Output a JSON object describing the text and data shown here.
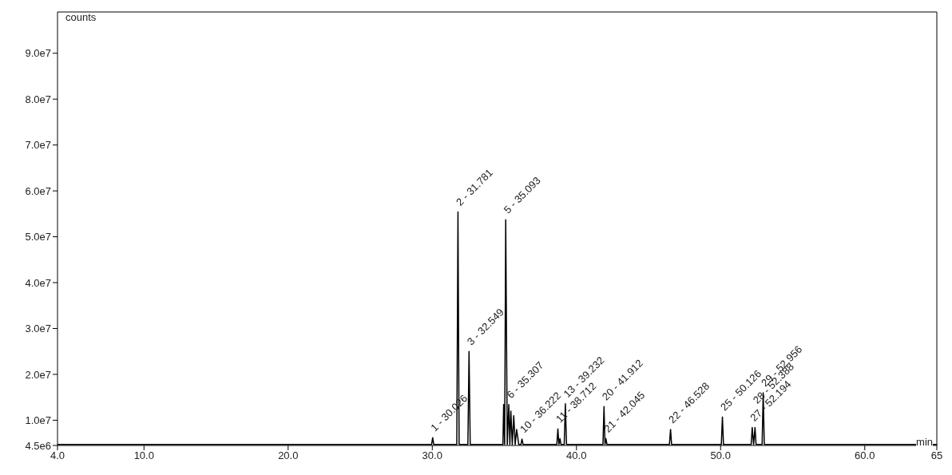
{
  "chart_data": {
    "type": "line",
    "xlabel": "min",
    "ylabel": "counts",
    "x": [
      4.0,
      29.95,
      30.026,
      30.1,
      31.7,
      31.781,
      31.86,
      32.47,
      32.549,
      32.63,
      34.9,
      34.95,
      35.02,
      35.093,
      35.2,
      35.307,
      35.38,
      35.45,
      35.55,
      35.65,
      35.75,
      35.85,
      36.0,
      36.15,
      36.222,
      36.3,
      38.64,
      38.712,
      38.78,
      38.858,
      38.93,
      39.15,
      39.232,
      39.31,
      41.84,
      41.912,
      41.98,
      42.045,
      42.12,
      46.45,
      46.528,
      46.6,
      50.05,
      50.126,
      50.2,
      52.12,
      52.194,
      52.29,
      52.388,
      52.46,
      52.88,
      52.956,
      53.03,
      65.0
    ],
    "values": [
      4700000,
      4700000,
      6200000,
      4700000,
      4700000,
      55400000,
      4700000,
      4700000,
      25000000,
      4700000,
      4700000,
      13400000,
      4700000,
      53700000,
      4700000,
      13400000,
      4700000,
      12000000,
      4700000,
      11000000,
      4700000,
      8000000,
      4700000,
      4700000,
      5900000,
      4700000,
      4700000,
      8100000,
      4700000,
      6000000,
      4700000,
      4700000,
      13600000,
      4700000,
      4700000,
      13000000,
      4700000,
      6000000,
      4700000,
      4700000,
      8000000,
      4700000,
      4700000,
      10700000,
      4700000,
      4700000,
      8400000,
      4700000,
      8400000,
      4700000,
      4700000,
      16000000,
      4700000,
      4700000
    ],
    "color": "#000000",
    "xlim": [
      4.0,
      65.0
    ],
    "xticks": [
      {
        "value": 4,
        "label": "4.0"
      },
      {
        "value": 10,
        "label": "10.0"
      },
      {
        "value": 20,
        "label": "20.0"
      },
      {
        "value": 30,
        "label": "30.0"
      },
      {
        "value": 40,
        "label": "40.0"
      },
      {
        "value": 50,
        "label": "50.0"
      },
      {
        "value": 60,
        "label": "60.0"
      },
      65
    ],
    "ylim": [
      4500000,
      99000000
    ],
    "yticks": [
      {
        "value": 4500000,
        "label": "4.5e6"
      },
      {
        "value": 10000000,
        "label": "1.0e7"
      },
      {
        "value": 20000000,
        "label": "2.0e7"
      },
      {
        "value": 30000000,
        "label": "3.0e7"
      },
      {
        "value": 40000000,
        "label": "4.0e7"
      },
      {
        "value": 50000000,
        "label": "5.0e7"
      },
      {
        "value": 60000000,
        "label": "6.0e7"
      },
      {
        "value": 70000000,
        "label": "7.0e7"
      },
      {
        "value": 80000000,
        "label": "8.0e7"
      },
      {
        "value": 90000000,
        "label": "9.0e7"
      }
    ],
    "grid": false,
    "legend": false,
    "marker": "none",
    "line_style": "solid",
    "annotations": [
      {
        "text": "1 - 30.026",
        "x": 30.026,
        "y": 6200000
      },
      {
        "text": "2 - 31.781",
        "x": 31.781,
        "y": 55400000
      },
      {
        "text": "3 - 32.549",
        "x": 32.549,
        "y": 25000000
      },
      {
        "text": "5 - 35.093",
        "x": 35.093,
        "y": 53700000
      },
      {
        "text": "6 - 35.307",
        "x": 35.307,
        "y": 13400000
      },
      {
        "text": "10 - 36.222",
        "x": 36.222,
        "y": 5900000
      },
      {
        "text": "11 - 38.712",
        "x": 38.712,
        "y": 8100000
      },
      {
        "text": "13 - 39.232",
        "x": 39.232,
        "y": 13600000
      },
      {
        "text": "20 - 41.912",
        "x": 41.912,
        "y": 13000000
      },
      {
        "text": "21 - 42.045",
        "x": 42.045,
        "y": 6000000
      },
      {
        "text": "22 - 46.528",
        "x": 46.528,
        "y": 8000000
      },
      {
        "text": "25 - 50.126",
        "x": 50.126,
        "y": 10700000
      },
      {
        "text": "27 - 52.194",
        "x": 52.194,
        "y": 8400000
      },
      {
        "text": "28 - 52.388",
        "x": 52.388,
        "y": 8400000
      },
      {
        "text": "29 - 52.956",
        "x": 52.956,
        "y": 16000000
      }
    ]
  }
}
